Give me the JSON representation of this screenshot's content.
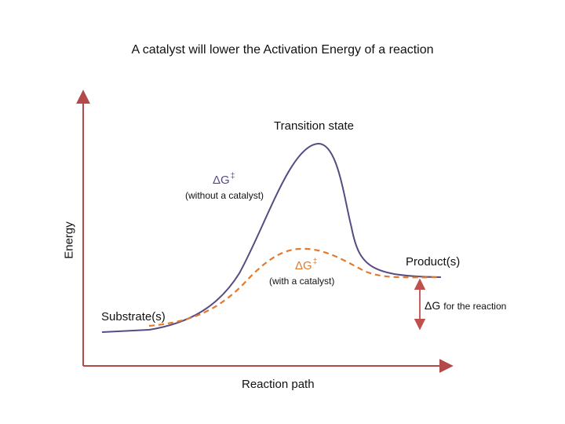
{
  "title": "A catalyst will lower the Activation Energy of a reaction",
  "axes": {
    "x_label": "Reaction path",
    "y_label": "Energy"
  },
  "labels": {
    "transition_state": "Transition state",
    "substrate": "Substrate(s)",
    "product": "Product(s)",
    "delta_g_symbol": "ΔG",
    "double_dagger": "‡",
    "without_catalyst": "(without a catalyst)",
    "with_catalyst": "(with a catalyst)",
    "for_the_reaction": "for the reaction"
  },
  "colors": {
    "axis": "#b24a4a",
    "uncatalyzed_curve": "#5a4a82",
    "catalyzed_curve": "#e07a2e",
    "uncatalyzed_label": "#5a4a82",
    "catalyzed_label": "#e07a2e",
    "delta_g_arrow": "#c0504d"
  }
}
